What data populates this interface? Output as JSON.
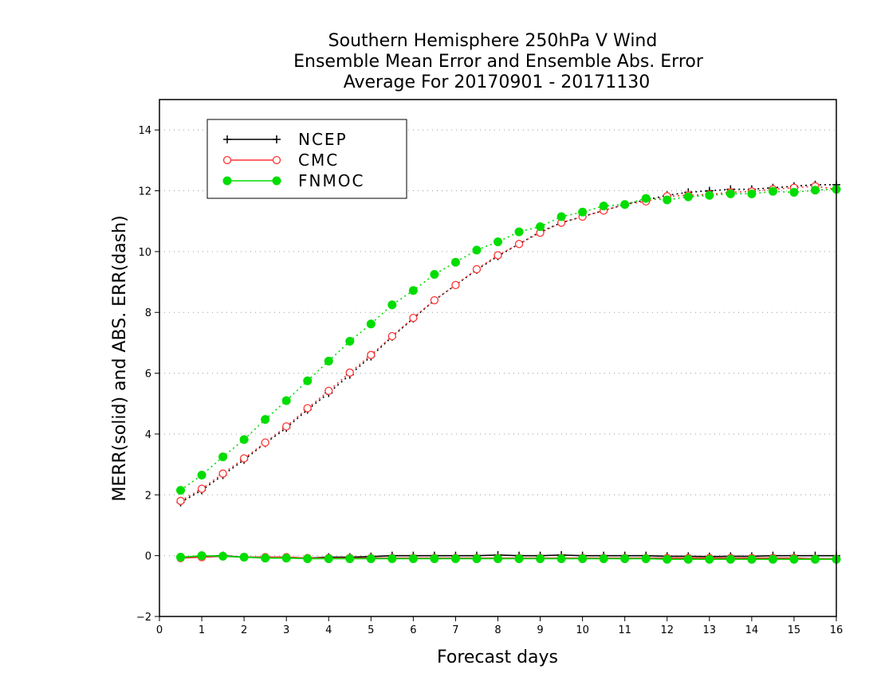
{
  "chart_data": {
    "type": "line",
    "title_lines": [
      "Southern Hemisphere 250hPa V Wind",
      "Ensemble Mean Error and Ensemble Abs. Error",
      "Average For 20170901 - 20171130"
    ],
    "xlabel": "Forecast days",
    "ylabel": "MERR(solid) and ABS. ERR(dash)",
    "xlim": [
      0,
      16
    ],
    "ylim": [
      -2,
      15
    ],
    "x_ticks": [
      0,
      1,
      2,
      3,
      4,
      5,
      6,
      7,
      8,
      9,
      10,
      11,
      12,
      13,
      14,
      15,
      16
    ],
    "y_ticks": [
      -2,
      0,
      2,
      4,
      6,
      8,
      10,
      12,
      14
    ],
    "grid": "horizontal dotted",
    "legend_position": "top-left",
    "x": [
      0.5,
      1,
      1.5,
      2,
      2.5,
      3,
      3.5,
      4,
      4.5,
      5,
      5.5,
      6,
      6.5,
      7,
      7.5,
      8,
      8.5,
      9,
      9.5,
      10,
      10.5,
      11,
      11.5,
      12,
      12.5,
      13,
      13.5,
      14,
      14.5,
      15,
      15.5,
      16
    ],
    "series": [
      {
        "name": "NCEP",
        "color": "#000000",
        "marker": "plus",
        "merr": [
          -0.05,
          -0.02,
          0.0,
          -0.05,
          -0.05,
          -0.05,
          -0.08,
          -0.05,
          -0.05,
          -0.03,
          0.0,
          0.0,
          0.0,
          0.0,
          0.0,
          0.02,
          0.0,
          0.0,
          0.02,
          0.0,
          0.0,
          0.0,
          0.0,
          -0.02,
          -0.02,
          -0.03,
          -0.02,
          -0.02,
          0.0,
          0.0,
          0.0,
          0.0
        ],
        "abs_err": [
          1.75,
          2.15,
          2.65,
          3.15,
          3.7,
          4.2,
          4.8,
          5.35,
          5.95,
          6.55,
          7.2,
          7.8,
          8.4,
          8.9,
          9.4,
          9.85,
          10.25,
          10.65,
          10.95,
          11.15,
          11.35,
          11.55,
          11.7,
          11.85,
          11.95,
          12.0,
          12.05,
          12.05,
          12.1,
          12.15,
          12.2,
          12.2
        ]
      },
      {
        "name": "CMC",
        "color": "#ff3333",
        "marker": "open-circle",
        "merr": [
          -0.08,
          -0.05,
          -0.02,
          -0.05,
          -0.05,
          -0.05,
          -0.08,
          -0.08,
          -0.08,
          -0.08,
          -0.08,
          -0.08,
          -0.08,
          -0.08,
          -0.08,
          -0.08,
          -0.08,
          -0.08,
          -0.08,
          -0.08,
          -0.08,
          -0.08,
          -0.08,
          -0.08,
          -0.08,
          -0.08,
          -0.08,
          -0.08,
          -0.08,
          -0.08,
          -0.1,
          -0.1
        ],
        "abs_err": [
          1.8,
          2.2,
          2.7,
          3.2,
          3.72,
          4.25,
          4.85,
          5.42,
          6.02,
          6.6,
          7.22,
          7.82,
          8.4,
          8.9,
          9.42,
          9.88,
          10.25,
          10.62,
          10.95,
          11.15,
          11.35,
          11.55,
          11.65,
          11.82,
          11.85,
          11.88,
          11.95,
          11.98,
          12.05,
          12.1,
          12.15,
          12.05
        ]
      },
      {
        "name": "FNMOC",
        "color": "#00dd00",
        "marker": "filled-circle",
        "merr": [
          -0.05,
          0.0,
          -0.02,
          -0.05,
          -0.08,
          -0.08,
          -0.1,
          -0.1,
          -0.1,
          -0.1,
          -0.1,
          -0.1,
          -0.1,
          -0.1,
          -0.1,
          -0.1,
          -0.1,
          -0.1,
          -0.1,
          -0.1,
          -0.1,
          -0.1,
          -0.1,
          -0.12,
          -0.12,
          -0.12,
          -0.12,
          -0.12,
          -0.12,
          -0.12,
          -0.12,
          -0.12
        ],
        "abs_err": [
          2.15,
          2.65,
          3.25,
          3.82,
          4.48,
          5.1,
          5.75,
          6.4,
          7.05,
          7.62,
          8.25,
          8.72,
          9.25,
          9.65,
          10.05,
          10.32,
          10.65,
          10.82,
          11.15,
          11.3,
          11.5,
          11.55,
          11.75,
          11.7,
          11.8,
          11.85,
          11.9,
          11.9,
          11.98,
          11.95,
          12.02,
          12.05
        ]
      }
    ]
  }
}
